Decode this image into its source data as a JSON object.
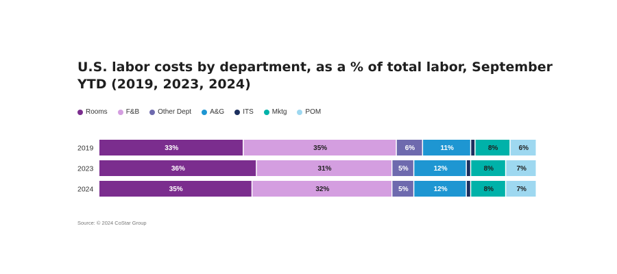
{
  "chart_data": {
    "type": "bar",
    "orientation": "horizontal",
    "stacked": true,
    "title": "U.S. labor costs by department, as a % of total labor, September YTD (2019, 2023, 2024)",
    "categories": [
      "2019",
      "2023",
      "2024"
    ],
    "series": [
      {
        "name": "Rooms",
        "color": "#7b2d8e",
        "label_color": "#ffffff",
        "values": [
          33,
          36,
          35
        ],
        "labels": [
          "33%",
          "36%",
          "35%"
        ]
      },
      {
        "name": "F&B",
        "color": "#d49ee0",
        "label_color": "#1f1f1f",
        "values": [
          35,
          31,
          32
        ],
        "labels": [
          "35%",
          "31%",
          "32%"
        ]
      },
      {
        "name": "Other Dept",
        "color": "#6e6aae",
        "label_color": "#ffffff",
        "values": [
          6,
          5,
          5
        ],
        "labels": [
          "6%",
          "5%",
          "5%"
        ]
      },
      {
        "name": "A&G",
        "color": "#1e96d2",
        "label_color": "#ffffff",
        "values": [
          11,
          12,
          12
        ],
        "labels": [
          "11%",
          "12%",
          "12%"
        ]
      },
      {
        "name": "ITS",
        "color": "#1c2f5e",
        "label_color": "#ffffff",
        "values": [
          1,
          1,
          1
        ],
        "labels": [
          "",
          "",
          ""
        ]
      },
      {
        "name": "Mktg",
        "color": "#00b2a9",
        "label_color": "#1f1f1f",
        "values": [
          8,
          8,
          8
        ],
        "labels": [
          "8%",
          "8%",
          "8%"
        ]
      },
      {
        "name": "POM",
        "color": "#9ed8f0",
        "label_color": "#1f1f1f",
        "values": [
          6,
          7,
          7
        ],
        "labels": [
          "6%",
          "7%",
          "7%"
        ]
      }
    ],
    "xlim": [
      0,
      100
    ],
    "grid": false,
    "legend_position": "top-left"
  },
  "source": "Source: © 2024 CoStar Group"
}
